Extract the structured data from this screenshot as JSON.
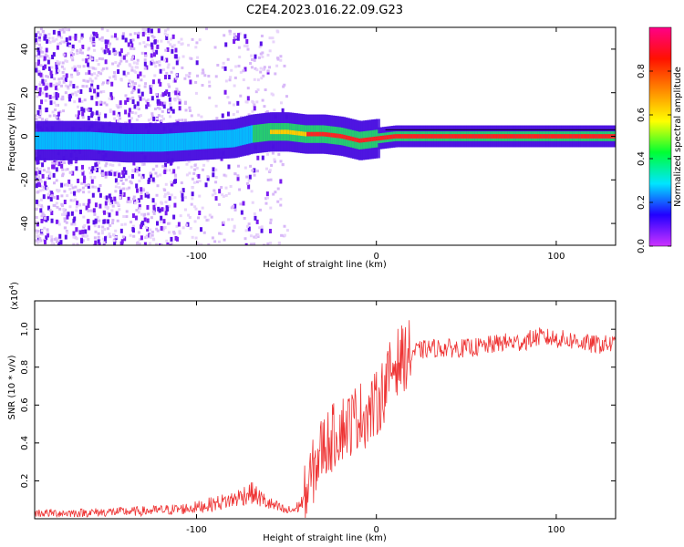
{
  "title": "C2E4.2023.016.22.09.G23",
  "chart_data": [
    {
      "type": "heatmap",
      "xlabel": "Height of straight line (km)",
      "ylabel": "Frequency (Hz)",
      "xlim": [
        -190,
        133
      ],
      "ylim": [
        -50,
        50
      ],
      "xticks": [
        -100,
        0,
        100
      ],
      "yticks": [
        -40,
        -20,
        0,
        20,
        40
      ],
      "grid": false,
      "description_series": [
        {
          "name": "ridge_frequency_hz",
          "x": [
            -160,
            -140,
            -120,
            -100,
            -80,
            -70,
            -60,
            -50,
            -40,
            -30,
            -20,
            -10,
            0,
            10,
            50,
            100,
            133
          ],
          "y": [
            -2,
            -3,
            -3,
            -2,
            -1,
            1,
            2,
            2,
            1,
            1,
            0,
            -2,
            -1,
            0,
            0,
            0,
            0
          ]
        }
      ],
      "colorbar": {
        "label": "Normalized spectral amplitude",
        "range": [
          0.0,
          1.0
        ],
        "ticks": [
          "0.0",
          "0.2",
          "0.4",
          "0.6",
          "0.8"
        ],
        "tick_values": [
          0.0,
          0.2,
          0.4,
          0.6,
          0.8
        ],
        "colors": [
          "#cc33ff",
          "#2200ff",
          "#00e5ff",
          "#00ff33",
          "#ffff00",
          "#ff8800",
          "#ff1100",
          "#ff0088"
        ]
      }
    },
    {
      "type": "line",
      "xlabel": "Height of straight line (km)",
      "ylabel": "SNR (10 * v/v)",
      "y_multiplier": "(x10",
      "y_multiplier_exp": "4",
      "y_multiplier_close": ")",
      "xlim": [
        -190,
        133
      ],
      "ylim": [
        0,
        1.15
      ],
      "xticks": [
        -100,
        0,
        100
      ],
      "yticks": [
        0.2,
        0.4,
        0.6,
        0.8,
        1.0
      ],
      "ytick_labels": [
        "0.2",
        "0.4",
        "0.6",
        "0.8",
        "1.0"
      ],
      "color": "#ee3333",
      "x": [
        -190,
        -170,
        -150,
        -130,
        -110,
        -100,
        -90,
        -80,
        -70,
        -60,
        -50,
        -45,
        -40,
        -35,
        -30,
        -25,
        -20,
        -15,
        -10,
        -5,
        0,
        5,
        10,
        15,
        20,
        30,
        40,
        50,
        60,
        70,
        80,
        90,
        100,
        110,
        120,
        133
      ],
      "y": [
        0.03,
        0.03,
        0.035,
        0.04,
        0.05,
        0.06,
        0.08,
        0.1,
        0.14,
        0.08,
        0.04,
        0.05,
        0.1,
        0.25,
        0.38,
        0.42,
        0.48,
        0.5,
        0.55,
        0.55,
        0.6,
        0.7,
        0.82,
        0.85,
        0.88,
        0.9,
        0.9,
        0.9,
        0.91,
        0.93,
        0.93,
        0.96,
        0.95,
        0.94,
        0.92,
        0.92
      ]
    }
  ]
}
